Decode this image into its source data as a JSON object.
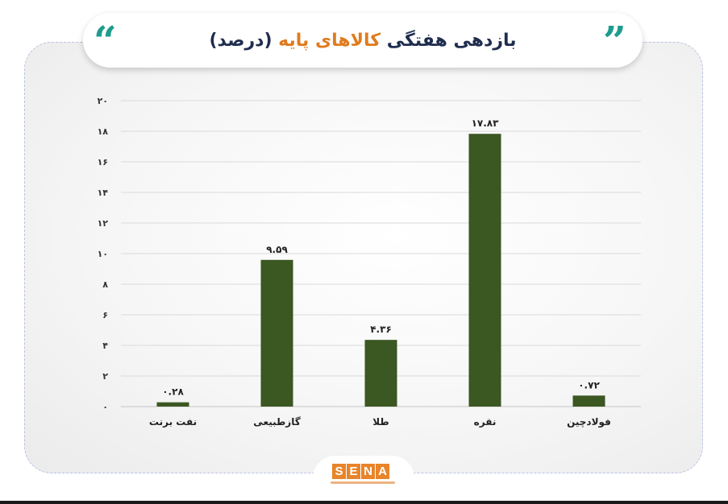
{
  "header": {
    "title_pre": "بازدهی هفتگی",
    "title_highlight": "کالاهای پایه",
    "title_post": "(درصد)",
    "quote_left": "“",
    "quote_right": "”"
  },
  "colors": {
    "bar": "#3b5722",
    "title": "#1f2d4e",
    "highlight": "#e07b1f",
    "quotes": "#1e9c8e",
    "logo": "#e8842a"
  },
  "chart_data": {
    "type": "bar",
    "title": "بازدهی هفتگی کالاهای پایه (درصد)",
    "categories": [
      "نفت برنت",
      "گازطبیعی",
      "طلا",
      "نقره",
      "فولادچین"
    ],
    "values": [
      0.28,
      9.59,
      4.36,
      17.83,
      0.72
    ],
    "value_labels": [
      "۰.۲۸",
      "۹.۵۹",
      "۴.۳۶",
      "۱۷.۸۳",
      "۰.۷۲"
    ],
    "ylim": [
      0,
      20
    ],
    "yticks": [
      0,
      2,
      4,
      6,
      8,
      10,
      12,
      14,
      16,
      18,
      20
    ],
    "ytick_labels": [
      "۰",
      "۲",
      "۴",
      "۶",
      "۸",
      "۱۰",
      "۱۲",
      "۱۴",
      "۱۶",
      "۱۸",
      "۲۰"
    ],
    "grid": true,
    "legend": "none"
  },
  "logo": {
    "letters": [
      "S",
      "E",
      "N",
      "A"
    ]
  }
}
